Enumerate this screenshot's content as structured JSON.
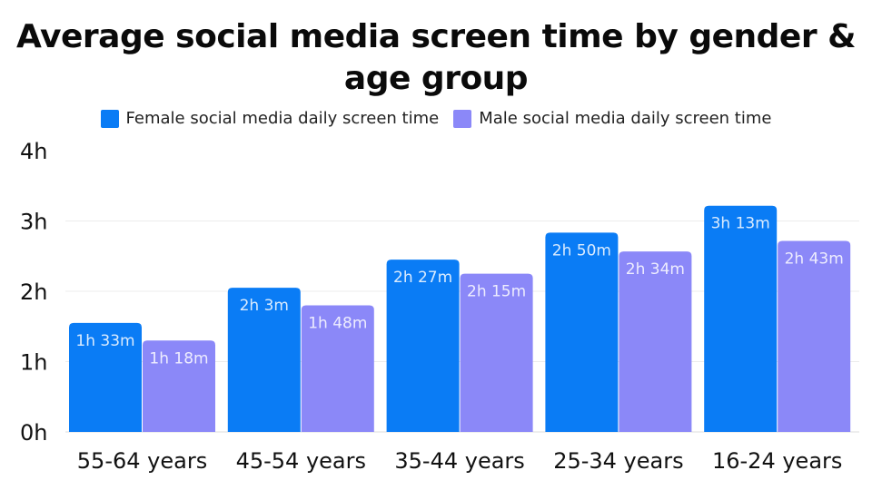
{
  "chart_data": {
    "type": "bar",
    "title": "Average social media screen time by gender & age group",
    "categories": [
      "55-64 years",
      "45-54 years",
      "35-44 years",
      "25-34 years",
      "16-24 years"
    ],
    "series": [
      {
        "name": "Female social media daily screen time",
        "color": "#0a7cf5",
        "values": [
          1.55,
          2.05,
          2.45,
          2.8333,
          3.2167
        ],
        "labels": [
          "1h 33m",
          "2h 3m",
          "2h 27m",
          "2h 50m",
          "3h 13m"
        ]
      },
      {
        "name": "Male social media daily screen time",
        "color": "#8b88f8",
        "values": [
          1.3,
          1.8,
          2.25,
          2.5667,
          2.7167
        ],
        "labels": [
          "1h 18m",
          "1h 48m",
          "2h 15m",
          "2h 34m",
          "2h 43m"
        ]
      }
    ],
    "yticks": [
      "0h",
      "1h",
      "2h",
      "3h",
      "4h"
    ],
    "ylim": [
      0,
      4
    ],
    "grid": true,
    "legend": "top-center"
  }
}
